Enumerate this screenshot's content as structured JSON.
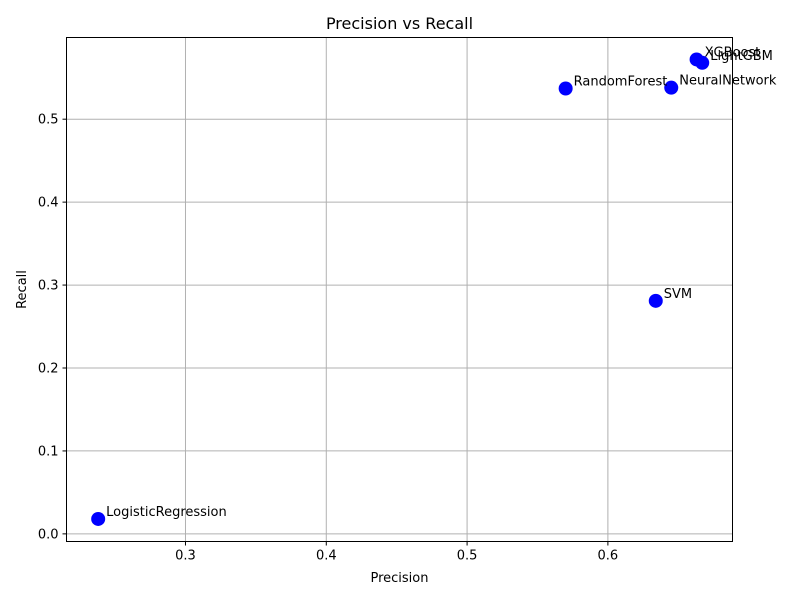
{
  "chart_data": {
    "type": "scatter",
    "title": "Precision vs Recall",
    "xlabel": "Precision",
    "ylabel": "Recall",
    "xlim": [
      0.2155,
      0.6885
    ],
    "ylim": [
      -0.0092,
      0.5985
    ],
    "xticks": [
      0.3,
      0.4,
      0.5,
      0.6
    ],
    "xtick_labels": [
      "0.3",
      "0.4",
      "0.5",
      "0.6"
    ],
    "yticks": [
      0.0,
      0.1,
      0.2,
      0.3,
      0.4,
      0.5
    ],
    "ytick_labels": [
      "0.0",
      "0.1",
      "0.2",
      "0.3",
      "0.4",
      "0.5"
    ],
    "grid": true,
    "marker_color": "#0000ff",
    "points": [
      {
        "label": "LogisticRegression",
        "x": 0.238,
        "y": 0.018
      },
      {
        "label": "RandomForest",
        "x": 0.57,
        "y": 0.537
      },
      {
        "label": "SVM",
        "x": 0.634,
        "y": 0.281
      },
      {
        "label": "NeuralNetwork",
        "x": 0.645,
        "y": 0.538
      },
      {
        "label": "XGBoost",
        "x": 0.663,
        "y": 0.572
      },
      {
        "label": "LightGBM",
        "x": 0.667,
        "y": 0.568
      }
    ]
  }
}
